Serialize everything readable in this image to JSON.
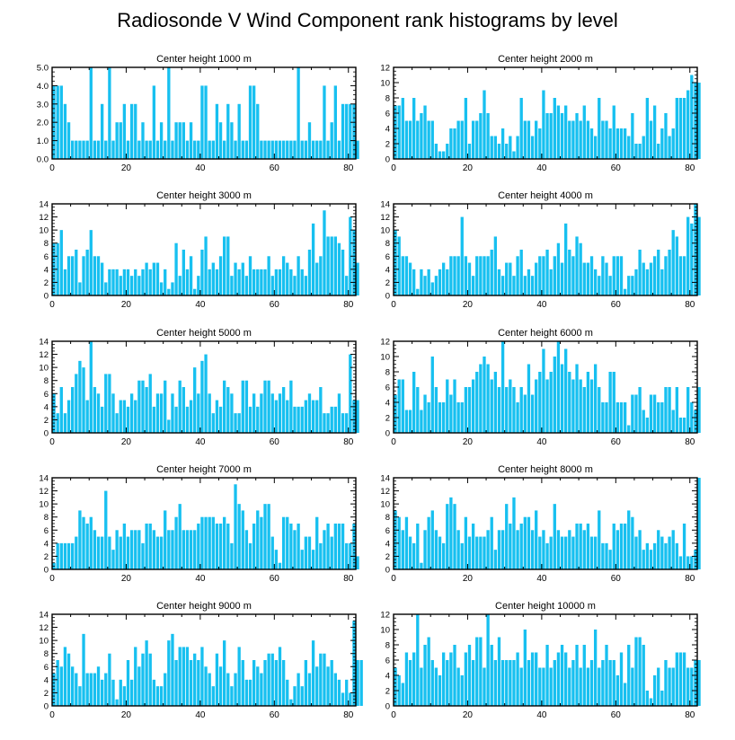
{
  "figure_title": "Radiosonde V Wind Component rank histograms by level",
  "bar_color": "#17c0f0",
  "chart_data": [
    {
      "type": "bar",
      "title": "Center height 1000 m",
      "xlim": [
        0,
        82
      ],
      "ylim": [
        0,
        5
      ],
      "yticks": [
        0,
        1,
        2,
        3,
        4,
        5
      ],
      "ytick_labels": [
        "0.0",
        "1.0",
        "2.0",
        "3.0",
        "4.0",
        "5.0"
      ],
      "xticks": [
        0,
        20,
        40,
        60,
        80
      ],
      "values": [
        4,
        4,
        4,
        3,
        2,
        1,
        1,
        1,
        1,
        1,
        5,
        1,
        1,
        3,
        1,
        5,
        1,
        2,
        2,
        3,
        1,
        3,
        3,
        1,
        2,
        1,
        1,
        4,
        1,
        2,
        1,
        5,
        1,
        2,
        2,
        2,
        1,
        2,
        1,
        1,
        4,
        4,
        1,
        1,
        3,
        2,
        1,
        3,
        2,
        1,
        3,
        1,
        1,
        4,
        4,
        3,
        1,
        1,
        1,
        1,
        1,
        1,
        1,
        1,
        1,
        1,
        5,
        1,
        1,
        2,
        1,
        1,
        1,
        4,
        1,
        2,
        4,
        1,
        3,
        3,
        3,
        3,
        1
      ]
    },
    {
      "type": "bar",
      "title": "Center height 2000 m",
      "xlim": [
        0,
        82
      ],
      "ylim": [
        0,
        12
      ],
      "yticks": [
        0,
        2,
        4,
        6,
        8,
        10,
        12
      ],
      "ytick_labels": [
        "0",
        "2",
        "4",
        "6",
        "8",
        "10",
        "12"
      ],
      "xticks": [
        0,
        20,
        40,
        60,
        80
      ],
      "values": [
        7,
        7,
        8,
        5,
        5,
        8,
        5,
        6,
        7,
        5,
        5,
        2,
        1,
        1,
        2,
        4,
        4,
        5,
        5,
        8,
        2,
        5,
        5,
        6,
        9,
        6,
        3,
        3,
        2,
        4,
        2,
        3,
        1,
        3,
        8,
        5,
        5,
        3,
        5,
        4,
        9,
        6,
        6,
        8,
        7,
        6,
        7,
        5,
        5,
        6,
        5,
        7,
        5,
        4,
        3,
        8,
        5,
        5,
        4,
        7,
        4,
        4,
        4,
        3,
        6,
        2,
        2,
        3,
        8,
        5,
        7,
        2,
        4,
        6,
        3,
        4,
        8,
        8,
        8,
        9,
        11,
        10,
        10
      ]
    },
    {
      "type": "bar",
      "title": "Center height 3000 m",
      "xlim": [
        0,
        82
      ],
      "ylim": [
        0,
        14
      ],
      "yticks": [
        0,
        2,
        4,
        6,
        8,
        10,
        12,
        14
      ],
      "ytick_labels": [
        "0",
        "2",
        "4",
        "6",
        "8",
        "10",
        "12",
        "14"
      ],
      "xticks": [
        0,
        20,
        40,
        60,
        80
      ],
      "values": [
        8,
        8,
        10,
        4,
        6,
        6,
        7,
        2,
        6,
        7,
        10,
        6,
        6,
        5,
        2,
        4,
        4,
        4,
        3,
        4,
        4,
        3,
        4,
        3,
        4,
        5,
        4,
        5,
        5,
        2,
        4,
        1,
        2,
        8,
        3,
        7,
        4,
        6,
        1,
        3,
        7,
        9,
        4,
        5,
        4,
        6,
        9,
        9,
        3,
        5,
        4,
        5,
        3,
        6,
        4,
        4,
        4,
        4,
        6,
        3,
        4,
        4,
        6,
        5,
        4,
        3,
        6,
        4,
        3,
        7,
        11,
        5,
        6,
        13,
        9,
        9,
        9,
        8,
        7,
        3,
        12,
        10,
        5
      ]
    },
    {
      "type": "bar",
      "title": "Center height 4000 m",
      "xlim": [
        0,
        82
      ],
      "ylim": [
        0,
        14
      ],
      "yticks": [
        0,
        2,
        4,
        6,
        8,
        10,
        12,
        14
      ],
      "ytick_labels": [
        "0",
        "2",
        "4",
        "6",
        "8",
        "10",
        "12",
        "14"
      ],
      "xticks": [
        0,
        20,
        40,
        60,
        80
      ],
      "values": [
        10,
        9,
        6,
        6,
        5,
        4,
        1,
        4,
        3,
        4,
        2,
        3,
        4,
        5,
        4,
        6,
        6,
        6,
        12,
        6,
        5,
        3,
        6,
        6,
        6,
        6,
        7,
        9,
        4,
        3,
        5,
        5,
        3,
        6,
        7,
        3,
        4,
        3,
        5,
        6,
        6,
        7,
        4,
        6,
        8,
        5,
        11,
        7,
        6,
        9,
        8,
        5,
        5,
        6,
        4,
        3,
        6,
        5,
        3,
        6,
        6,
        6,
        1,
        3,
        3,
        4,
        7,
        5,
        4,
        5,
        6,
        7,
        4,
        6,
        7,
        10,
        9,
        6,
        6,
        12,
        11,
        14,
        12
      ]
    },
    {
      "type": "bar",
      "title": "Center height 5000 m",
      "xlim": [
        0,
        82
      ],
      "ylim": [
        0,
        14
      ],
      "yticks": [
        0,
        2,
        4,
        6,
        8,
        10,
        12,
        14
      ],
      "ytick_labels": [
        "0",
        "2",
        "4",
        "6",
        "8",
        "10",
        "12",
        "14"
      ],
      "xticks": [
        0,
        20,
        40,
        60,
        80
      ],
      "values": [
        6,
        3,
        7,
        3,
        5,
        7,
        9,
        11,
        10,
        5,
        14,
        7,
        6,
        4,
        9,
        9,
        6,
        3,
        5,
        5,
        4,
        6,
        5,
        8,
        8,
        7,
        9,
        4,
        6,
        6,
        8,
        2,
        6,
        4,
        8,
        7,
        4,
        5,
        10,
        6,
        11,
        12,
        6,
        3,
        5,
        4,
        8,
        7,
        6,
        3,
        3,
        8,
        8,
        4,
        6,
        4,
        6,
        8,
        8,
        6,
        5,
        6,
        7,
        5,
        8,
        4,
        4,
        4,
        5,
        6,
        5,
        5,
        7,
        3,
        3,
        4,
        4,
        6,
        3,
        3,
        12,
        5,
        5
      ]
    },
    {
      "type": "bar",
      "title": "Center height 6000 m",
      "xlim": [
        0,
        82
      ],
      "ylim": [
        0,
        12
      ],
      "yticks": [
        0,
        2,
        4,
        6,
        8,
        10,
        12
      ],
      "ytick_labels": [
        "0",
        "2",
        "4",
        "6",
        "8",
        "10",
        "12"
      ],
      "xticks": [
        0,
        20,
        40,
        60,
        80
      ],
      "values": [
        5,
        7,
        7,
        3,
        3,
        8,
        6,
        3,
        5,
        4,
        10,
        6,
        4,
        4,
        7,
        5,
        7,
        4,
        4,
        6,
        6,
        7,
        8,
        9,
        10,
        9,
        7,
        8,
        6,
        12,
        6,
        7,
        6,
        4,
        6,
        5,
        9,
        5,
        7,
        8,
        11,
        7,
        8,
        10,
        12,
        9,
        11,
        8,
        7,
        9,
        7,
        6,
        8,
        7,
        9,
        6,
        4,
        4,
        8,
        8,
        4,
        4,
        4,
        1,
        5,
        5,
        6,
        3,
        2,
        5,
        5,
        4,
        4,
        6,
        6,
        3,
        6,
        2,
        2,
        6,
        4,
        3,
        6
      ]
    },
    {
      "type": "bar",
      "title": "Center height 7000 m",
      "xlim": [
        0,
        82
      ],
      "ylim": [
        0,
        14
      ],
      "yticks": [
        0,
        2,
        4,
        6,
        8,
        10,
        12,
        14
      ],
      "ytick_labels": [
        "0",
        "2",
        "4",
        "6",
        "8",
        "10",
        "12",
        "14"
      ],
      "xticks": [
        0,
        20,
        40,
        60,
        80
      ],
      "values": [
        1,
        4,
        4,
        4,
        4,
        4,
        5,
        9,
        8,
        7,
        8,
        6,
        5,
        5,
        12,
        5,
        3,
        6,
        5,
        7,
        5,
        6,
        6,
        6,
        4,
        7,
        7,
        6,
        5,
        5,
        9,
        6,
        6,
        8,
        10,
        6,
        6,
        6,
        6,
        7,
        8,
        8,
        8,
        8,
        7,
        7,
        8,
        7,
        4,
        13,
        10,
        9,
        6,
        4,
        7,
        9,
        8,
        10,
        10,
        5,
        3,
        1,
        8,
        8,
        7,
        6,
        7,
        3,
        5,
        5,
        3,
        8,
        4,
        6,
        7,
        5,
        7,
        7,
        7,
        4,
        4,
        7,
        2
      ]
    },
    {
      "type": "bar",
      "title": "Center height 8000 m",
      "xlim": [
        0,
        82
      ],
      "ylim": [
        0,
        14
      ],
      "yticks": [
        0,
        2,
        4,
        6,
        8,
        10,
        12,
        14
      ],
      "ytick_labels": [
        "0",
        "2",
        "4",
        "6",
        "8",
        "10",
        "12",
        "14"
      ],
      "xticks": [
        0,
        20,
        40,
        60,
        80
      ],
      "values": [
        9,
        8,
        6,
        8,
        5,
        4,
        7,
        1,
        6,
        8,
        9,
        6,
        5,
        4,
        10,
        11,
        10,
        6,
        4,
        8,
        5,
        7,
        5,
        5,
        5,
        6,
        8,
        3,
        6,
        6,
        10,
        7,
        11,
        6,
        7,
        8,
        8,
        6,
        9,
        5,
        6,
        4,
        5,
        10,
        6,
        5,
        5,
        6,
        5,
        7,
        7,
        6,
        7,
        5,
        5,
        9,
        4,
        4,
        3,
        7,
        6,
        7,
        7,
        9,
        8,
        5,
        6,
        3,
        4,
        3,
        4,
        6,
        5,
        4,
        5,
        6,
        4,
        2,
        7,
        2,
        2,
        3,
        14
      ]
    },
    {
      "type": "bar",
      "title": "Center height 9000 m",
      "xlim": [
        0,
        82
      ],
      "ylim": [
        0,
        14
      ],
      "yticks": [
        0,
        2,
        4,
        6,
        8,
        10,
        12,
        14
      ],
      "ytick_labels": [
        "0",
        "2",
        "4",
        "6",
        "8",
        "10",
        "12",
        "14"
      ],
      "xticks": [
        0,
        20,
        40,
        60,
        80
      ],
      "values": [
        5,
        7,
        6,
        9,
        8,
        6,
        5,
        3,
        11,
        5,
        5,
        5,
        6,
        4,
        5,
        8,
        4,
        1,
        4,
        3,
        7,
        4,
        9,
        6,
        8,
        10,
        8,
        4,
        3,
        3,
        5,
        10,
        11,
        7,
        9,
        9,
        9,
        7,
        8,
        7,
        9,
        6,
        5,
        3,
        8,
        6,
        10,
        5,
        3,
        5,
        9,
        7,
        4,
        4,
        7,
        6,
        5,
        7,
        8,
        8,
        7,
        9,
        7,
        4,
        1,
        3,
        5,
        3,
        7,
        5,
        10,
        6,
        8,
        8,
        6,
        7,
        5,
        4,
        2,
        4,
        2,
        13,
        7,
        7
      ]
    },
    {
      "type": "bar",
      "title": "Center height 10000 m",
      "xlim": [
        0,
        82
      ],
      "ylim": [
        0,
        12
      ],
      "yticks": [
        0,
        2,
        4,
        6,
        8,
        10,
        12
      ],
      "ytick_labels": [
        "0",
        "2",
        "4",
        "6",
        "8",
        "10",
        "12"
      ],
      "xticks": [
        0,
        20,
        40,
        60,
        80
      ],
      "values": [
        5,
        4,
        3,
        7,
        6,
        7,
        12,
        5,
        8,
        9,
        6,
        5,
        4,
        7,
        6,
        7,
        8,
        5,
        4,
        7,
        8,
        6,
        9,
        9,
        5,
        12,
        8,
        6,
        9,
        6,
        6,
        6,
        6,
        7,
        5,
        10,
        6,
        7,
        7,
        5,
        5,
        8,
        5,
        6,
        7,
        8,
        7,
        5,
        6,
        8,
        5,
        8,
        5,
        6,
        10,
        5,
        6,
        8,
        6,
        6,
        4,
        7,
        3,
        8,
        5,
        9,
        9,
        8,
        2,
        1,
        4,
        5,
        2,
        6,
        5,
        5,
        7,
        7,
        7,
        5,
        5,
        6,
        6
      ]
    }
  ]
}
